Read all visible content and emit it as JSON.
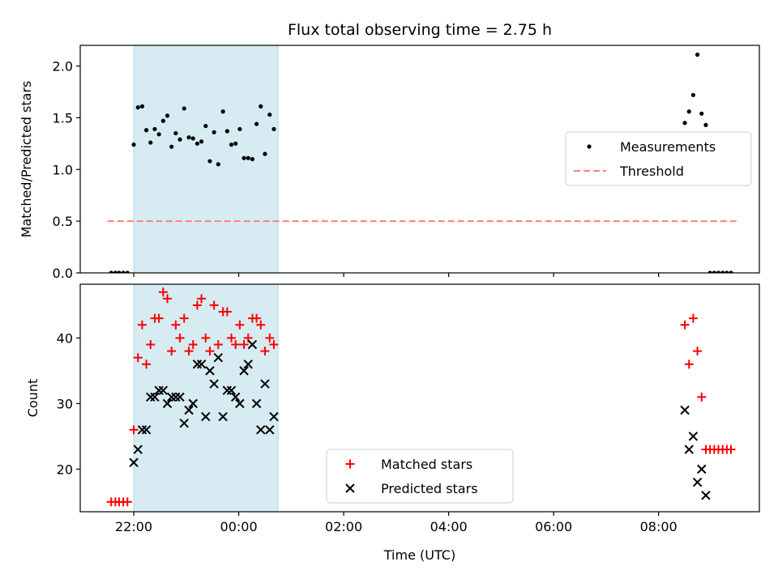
{
  "chart_data": {
    "title": "Flux total observing time = 2.75 h",
    "xlabel": "Time (UTC)",
    "x_ticks": [
      {
        "label": "22:00",
        "hours": 22
      },
      {
        "label": "00:00",
        "hours": 24
      },
      {
        "label": "02:00",
        "hours": 26
      },
      {
        "label": "04:00",
        "hours": 28
      },
      {
        "label": "06:00",
        "hours": 30
      },
      {
        "label": "08:00",
        "hours": 32
      }
    ],
    "x_range_hours": [
      20.98,
      33.92
    ],
    "highlight_span_hours": [
      22.0,
      24.75
    ],
    "highlight_color": "#add8e6",
    "panels": [
      {
        "type": "scatter",
        "ylabel": "Matched/Predicted stars",
        "ylim": [
          0,
          2.2
        ],
        "y_ticks": [
          "0.0",
          "0.5",
          "1.0",
          "1.5",
          "2.0"
        ],
        "y_tick_values": [
          0,
          0.5,
          1.0,
          1.5,
          2.0
        ],
        "legend_position": "center-right",
        "threshold": {
          "name": "Threshold",
          "value": 0.5,
          "x_start": 21.5,
          "x_end": 33.5,
          "color": "#ff7f7f"
        },
        "series": [
          {
            "name": "Measurements",
            "color": "#000000",
            "marker": "dot",
            "points": [
              [
                21.57,
                0
              ],
              [
                21.65,
                0
              ],
              [
                21.72,
                0
              ],
              [
                21.8,
                0
              ],
              [
                21.88,
                0
              ],
              [
                22.0,
                1.24
              ],
              [
                22.08,
                1.6
              ],
              [
                22.16,
                1.61
              ],
              [
                22.24,
                1.38
              ],
              [
                22.32,
                1.26
              ],
              [
                22.4,
                1.39
              ],
              [
                22.48,
                1.34
              ],
              [
                22.56,
                1.47
              ],
              [
                22.64,
                1.52
              ],
              [
                22.72,
                1.22
              ],
              [
                22.8,
                1.35
              ],
              [
                22.88,
                1.29
              ],
              [
                22.96,
                1.59
              ],
              [
                23.05,
                1.31
              ],
              [
                23.13,
                1.3
              ],
              [
                23.21,
                1.25
              ],
              [
                23.29,
                1.27
              ],
              [
                23.37,
                1.42
              ],
              [
                23.45,
                1.08
              ],
              [
                23.53,
                1.36
              ],
              [
                23.61,
                1.05
              ],
              [
                23.7,
                1.56
              ],
              [
                23.78,
                1.37
              ],
              [
                23.86,
                1.24
              ],
              [
                23.94,
                1.25
              ],
              [
                24.02,
                1.39
              ],
              [
                24.1,
                1.11
              ],
              [
                24.18,
                1.11
              ],
              [
                24.26,
                1.1
              ],
              [
                24.34,
                1.44
              ],
              [
                24.42,
                1.61
              ],
              [
                24.5,
                1.15
              ],
              [
                24.59,
                1.53
              ],
              [
                24.67,
                1.39
              ],
              [
                32.5,
                1.45
              ],
              [
                32.58,
                1.56
              ],
              [
                32.66,
                1.72
              ],
              [
                32.74,
                2.11
              ],
              [
                32.82,
                1.54
              ],
              [
                32.9,
                1.43
              ],
              [
                32.98,
                0
              ],
              [
                33.06,
                0
              ],
              [
                33.14,
                0
              ],
              [
                33.22,
                0
              ],
              [
                33.3,
                0
              ],
              [
                33.38,
                0
              ]
            ]
          }
        ]
      },
      {
        "type": "scatter",
        "ylabel": "Count",
        "ylim": [
          13.5,
          48.2
        ],
        "y_ticks": [
          "20",
          "30",
          "40"
        ],
        "y_tick_values": [
          20,
          30,
          40
        ],
        "legend_position": "lower-center",
        "series": [
          {
            "name": "Matched stars",
            "color": "#ff0000",
            "marker": "plus",
            "points": [
              [
                21.57,
                15
              ],
              [
                21.65,
                15
              ],
              [
                21.72,
                15
              ],
              [
                21.8,
                15
              ],
              [
                21.88,
                15
              ],
              [
                22.0,
                26
              ],
              [
                22.08,
                37
              ],
              [
                22.16,
                42
              ],
              [
                22.24,
                36
              ],
              [
                22.32,
                39
              ],
              [
                22.4,
                43
              ],
              [
                22.48,
                43
              ],
              [
                22.56,
                47
              ],
              [
                22.64,
                46
              ],
              [
                22.72,
                38
              ],
              [
                22.8,
                42
              ],
              [
                22.88,
                40
              ],
              [
                22.96,
                43
              ],
              [
                23.05,
                38
              ],
              [
                23.13,
                39
              ],
              [
                23.21,
                45
              ],
              [
                23.29,
                46
              ],
              [
                23.37,
                40
              ],
              [
                23.45,
                38
              ],
              [
                23.53,
                45
              ],
              [
                23.61,
                39
              ],
              [
                23.7,
                44
              ],
              [
                23.78,
                44
              ],
              [
                23.86,
                40
              ],
              [
                23.94,
                39
              ],
              [
                24.02,
                42
              ],
              [
                24.1,
                39
              ],
              [
                24.18,
                40
              ],
              [
                24.26,
                43
              ],
              [
                24.34,
                43
              ],
              [
                24.42,
                42
              ],
              [
                24.5,
                38
              ],
              [
                24.59,
                40
              ],
              [
                24.67,
                39
              ],
              [
                32.5,
                42
              ],
              [
                32.58,
                36
              ],
              [
                32.66,
                43
              ],
              [
                32.74,
                38
              ],
              [
                32.82,
                31
              ],
              [
                32.9,
                23
              ],
              [
                32.98,
                23
              ],
              [
                33.06,
                23
              ],
              [
                33.14,
                23
              ],
              [
                33.22,
                23
              ],
              [
                33.3,
                23
              ],
              [
                33.38,
                23
              ]
            ]
          },
          {
            "name": "Predicted stars",
            "color": "#000000",
            "marker": "x",
            "points": [
              [
                22.0,
                21
              ],
              [
                22.08,
                23
              ],
              [
                22.16,
                26
              ],
              [
                22.24,
                26
              ],
              [
                22.32,
                31
              ],
              [
                22.4,
                31
              ],
              [
                22.48,
                32
              ],
              [
                22.56,
                32
              ],
              [
                22.64,
                30
              ],
              [
                22.72,
                31
              ],
              [
                22.8,
                31
              ],
              [
                22.88,
                31
              ],
              [
                22.96,
                27
              ],
              [
                23.05,
                29
              ],
              [
                23.13,
                30
              ],
              [
                23.21,
                36
              ],
              [
                23.29,
                36
              ],
              [
                23.37,
                28
              ],
              [
                23.45,
                35
              ],
              [
                23.53,
                33
              ],
              [
                23.61,
                37
              ],
              [
                23.7,
                28
              ],
              [
                23.78,
                32
              ],
              [
                23.86,
                32
              ],
              [
                23.94,
                31
              ],
              [
                24.02,
                30
              ],
              [
                24.1,
                35
              ],
              [
                24.18,
                36
              ],
              [
                24.26,
                39
              ],
              [
                24.34,
                30
              ],
              [
                24.42,
                26
              ],
              [
                24.5,
                33
              ],
              [
                24.59,
                26
              ],
              [
                24.67,
                28
              ],
              [
                32.5,
                29
              ],
              [
                32.58,
                23
              ],
              [
                32.66,
                25
              ],
              [
                32.74,
                18
              ],
              [
                32.82,
                20
              ],
              [
                32.9,
                16
              ]
            ]
          }
        ]
      }
    ]
  }
}
